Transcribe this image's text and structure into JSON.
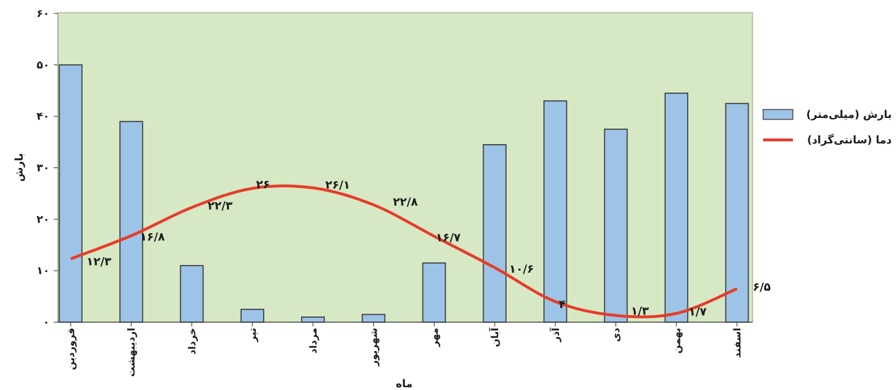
{
  "chart_data": {
    "type": "bar",
    "categories": [
      "فروردین",
      "اردیبهشت",
      "خرداد",
      "تیر",
      "مرداد",
      "شهریور",
      "مهر",
      "آبان",
      "آذر",
      "دی",
      "بهمن",
      "اسفند"
    ],
    "ylim": [
      0,
      60
    ],
    "y_ticks": [
      "۰",
      "۱۰",
      "۲۰",
      "۳۰",
      "۴۰",
      "۵۰",
      "۶۰"
    ],
    "xlabel": "ماه",
    "ylabel": "بارش",
    "grid": false,
    "legend_position": "right",
    "series": [
      {
        "name": "بارش (میلی‌متر)",
        "type": "bar",
        "color": "#9dc3e6",
        "values": [
          50,
          39,
          11,
          2.5,
          1,
          1.5,
          11.5,
          34.5,
          43,
          37.5,
          44.5,
          42.5
        ]
      },
      {
        "name": "دما (سانتی‌گراد)",
        "type": "line",
        "color": "#e63c2a",
        "values": [
          12.3,
          16.8,
          22.3,
          26,
          26.1,
          22.8,
          16.7,
          10.6,
          4,
          1.3,
          1.7,
          6.5
        ],
        "data_labels": [
          "۱۲/۳",
          "۱۶/۸",
          "۲۲/۳",
          "۲۶",
          "۲۶/۱",
          "۲۲/۸",
          "۱۶/۷",
          "۱۰/۶",
          "۴",
          "۱/۳",
          "۱/۷",
          "۶/۵"
        ]
      }
    ]
  },
  "colors": {
    "plot_background": "#d7e8c4",
    "bar_fill": "#9dc3e6",
    "bar_stroke": "#3a3a3a",
    "line": "#e63c2a"
  }
}
